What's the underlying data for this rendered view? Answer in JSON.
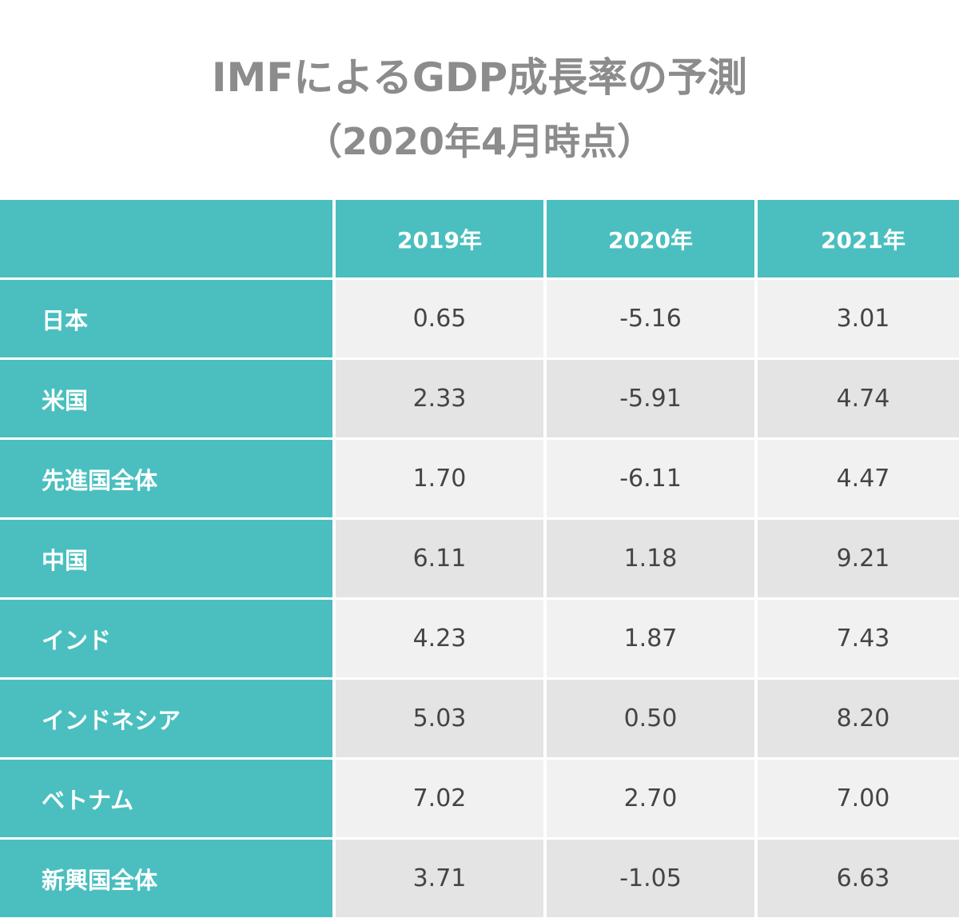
{
  "title": {
    "line1": "IMFによるGDP成長率の予測",
    "line2": "（2020年4月時点）"
  },
  "colors": {
    "header_bg": "#4bbfbf",
    "row_light": "#f1f1f1",
    "row_dark": "#e4e4e4",
    "title_text": "#8c8c8c"
  },
  "chart_data": {
    "type": "table",
    "title": "IMFによるGDP成長率の予測（2020年4月時点）",
    "columns": [
      "",
      "2019年",
      "2020年",
      "2021年"
    ],
    "rows": [
      {
        "label": "日本",
        "values": [
          "0.65",
          "-5.16",
          "3.01"
        ]
      },
      {
        "label": "米国",
        "values": [
          "2.33",
          "-5.91",
          "4.74"
        ]
      },
      {
        "label": "先進国全体",
        "values": [
          "1.70",
          "-6.11",
          "4.47"
        ]
      },
      {
        "label": "中国",
        "values": [
          "6.11",
          "1.18",
          "9.21"
        ]
      },
      {
        "label": "インド",
        "values": [
          "4.23",
          "1.87",
          "7.43"
        ]
      },
      {
        "label": "インドネシア",
        "values": [
          "5.03",
          "0.50",
          "8.20"
        ]
      },
      {
        "label": "ベトナム",
        "values": [
          "7.02",
          "2.70",
          "7.00"
        ]
      },
      {
        "label": "新興国全体",
        "values": [
          "3.71",
          "-1.05",
          "6.63"
        ]
      }
    ]
  }
}
